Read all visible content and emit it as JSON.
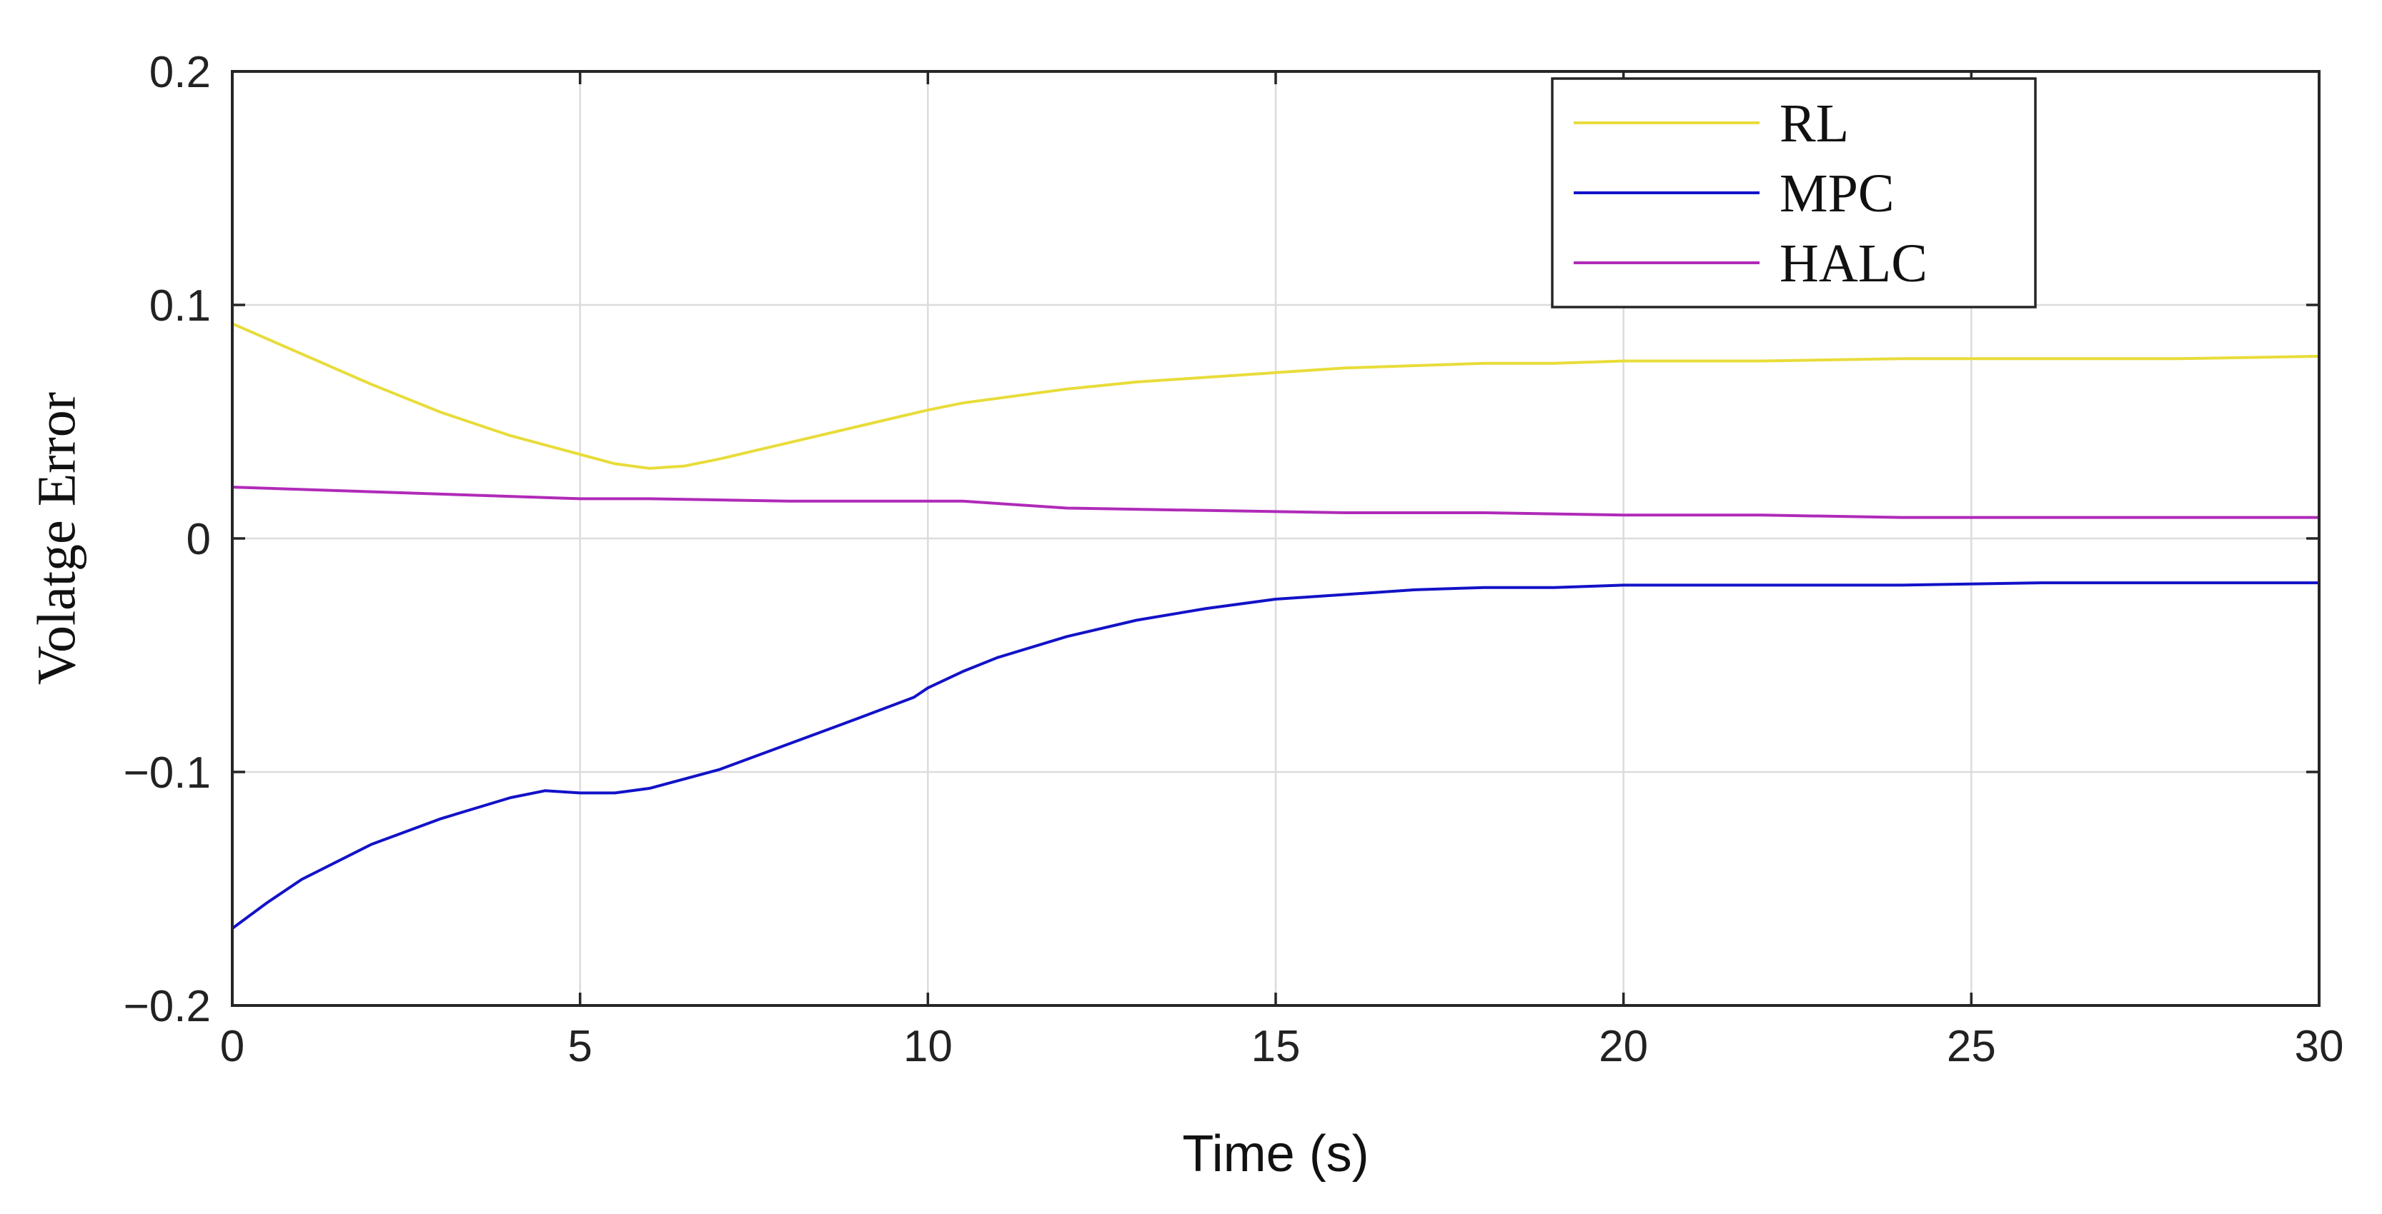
{
  "chart_data": {
    "type": "line",
    "title": "",
    "xlabel": "Time (s)",
    "ylabel": "Volatge Error",
    "xlim": [
      0,
      30
    ],
    "ylim": [
      -0.2,
      0.2
    ],
    "xticks": [
      0,
      5,
      10,
      15,
      20,
      25,
      30
    ],
    "yticks": [
      -0.2,
      -0.1,
      0,
      0.1,
      0.2
    ],
    "xtick_labels": [
      "0",
      "5",
      "10",
      "15",
      "20",
      "25",
      "30"
    ],
    "ytick_labels": [
      "−0.2",
      "−0.1",
      "0",
      "0.1",
      "0.2"
    ],
    "grid": true,
    "legend_position": "top-right",
    "series": [
      {
        "name": "RL",
        "color": "#e8dc3a",
        "x": [
          0,
          1,
          2,
          3,
          4,
          5,
          5.5,
          6,
          6.5,
          7,
          8,
          9,
          10,
          10.5,
          11,
          12,
          13,
          14,
          15,
          16,
          17,
          18,
          19,
          20,
          22,
          24,
          26,
          28,
          30
        ],
        "y": [
          0.092,
          0.079,
          0.066,
          0.054,
          0.044,
          0.036,
          0.032,
          0.03,
          0.031,
          0.034,
          0.041,
          0.048,
          0.055,
          0.058,
          0.06,
          0.064,
          0.067,
          0.069,
          0.071,
          0.073,
          0.074,
          0.075,
          0.075,
          0.076,
          0.076,
          0.077,
          0.077,
          0.077,
          0.078
        ]
      },
      {
        "name": "MPC",
        "color": "#1212c8",
        "x": [
          0,
          0.5,
          1,
          2,
          3,
          4,
          4.5,
          5,
          5.5,
          6,
          7,
          8,
          9,
          9.8,
          10,
          10.5,
          11,
          12,
          13,
          14,
          15,
          16,
          17,
          18,
          19,
          20,
          22,
          24,
          26,
          28,
          30
        ],
        "y": [
          -0.167,
          -0.156,
          -0.146,
          -0.131,
          -0.12,
          -0.111,
          -0.108,
          -0.109,
          -0.109,
          -0.107,
          -0.099,
          -0.088,
          -0.077,
          -0.068,
          -0.064,
          -0.057,
          -0.051,
          -0.042,
          -0.035,
          -0.03,
          -0.026,
          -0.024,
          -0.022,
          -0.021,
          -0.021,
          -0.02,
          -0.02,
          -0.02,
          -0.019,
          -0.019,
          -0.019
        ]
      },
      {
        "name": "HALC",
        "color": "#b02ab8",
        "x": [
          0,
          2,
          4,
          5,
          6,
          8,
          10,
          10.5,
          11,
          12,
          14,
          16,
          18,
          20,
          22,
          24,
          26,
          28,
          30
        ],
        "y": [
          0.022,
          0.02,
          0.018,
          0.017,
          0.017,
          0.016,
          0.016,
          0.016,
          0.015,
          0.013,
          0.012,
          0.011,
          0.011,
          0.01,
          0.01,
          0.009,
          0.009,
          0.009,
          0.009
        ]
      }
    ]
  }
}
